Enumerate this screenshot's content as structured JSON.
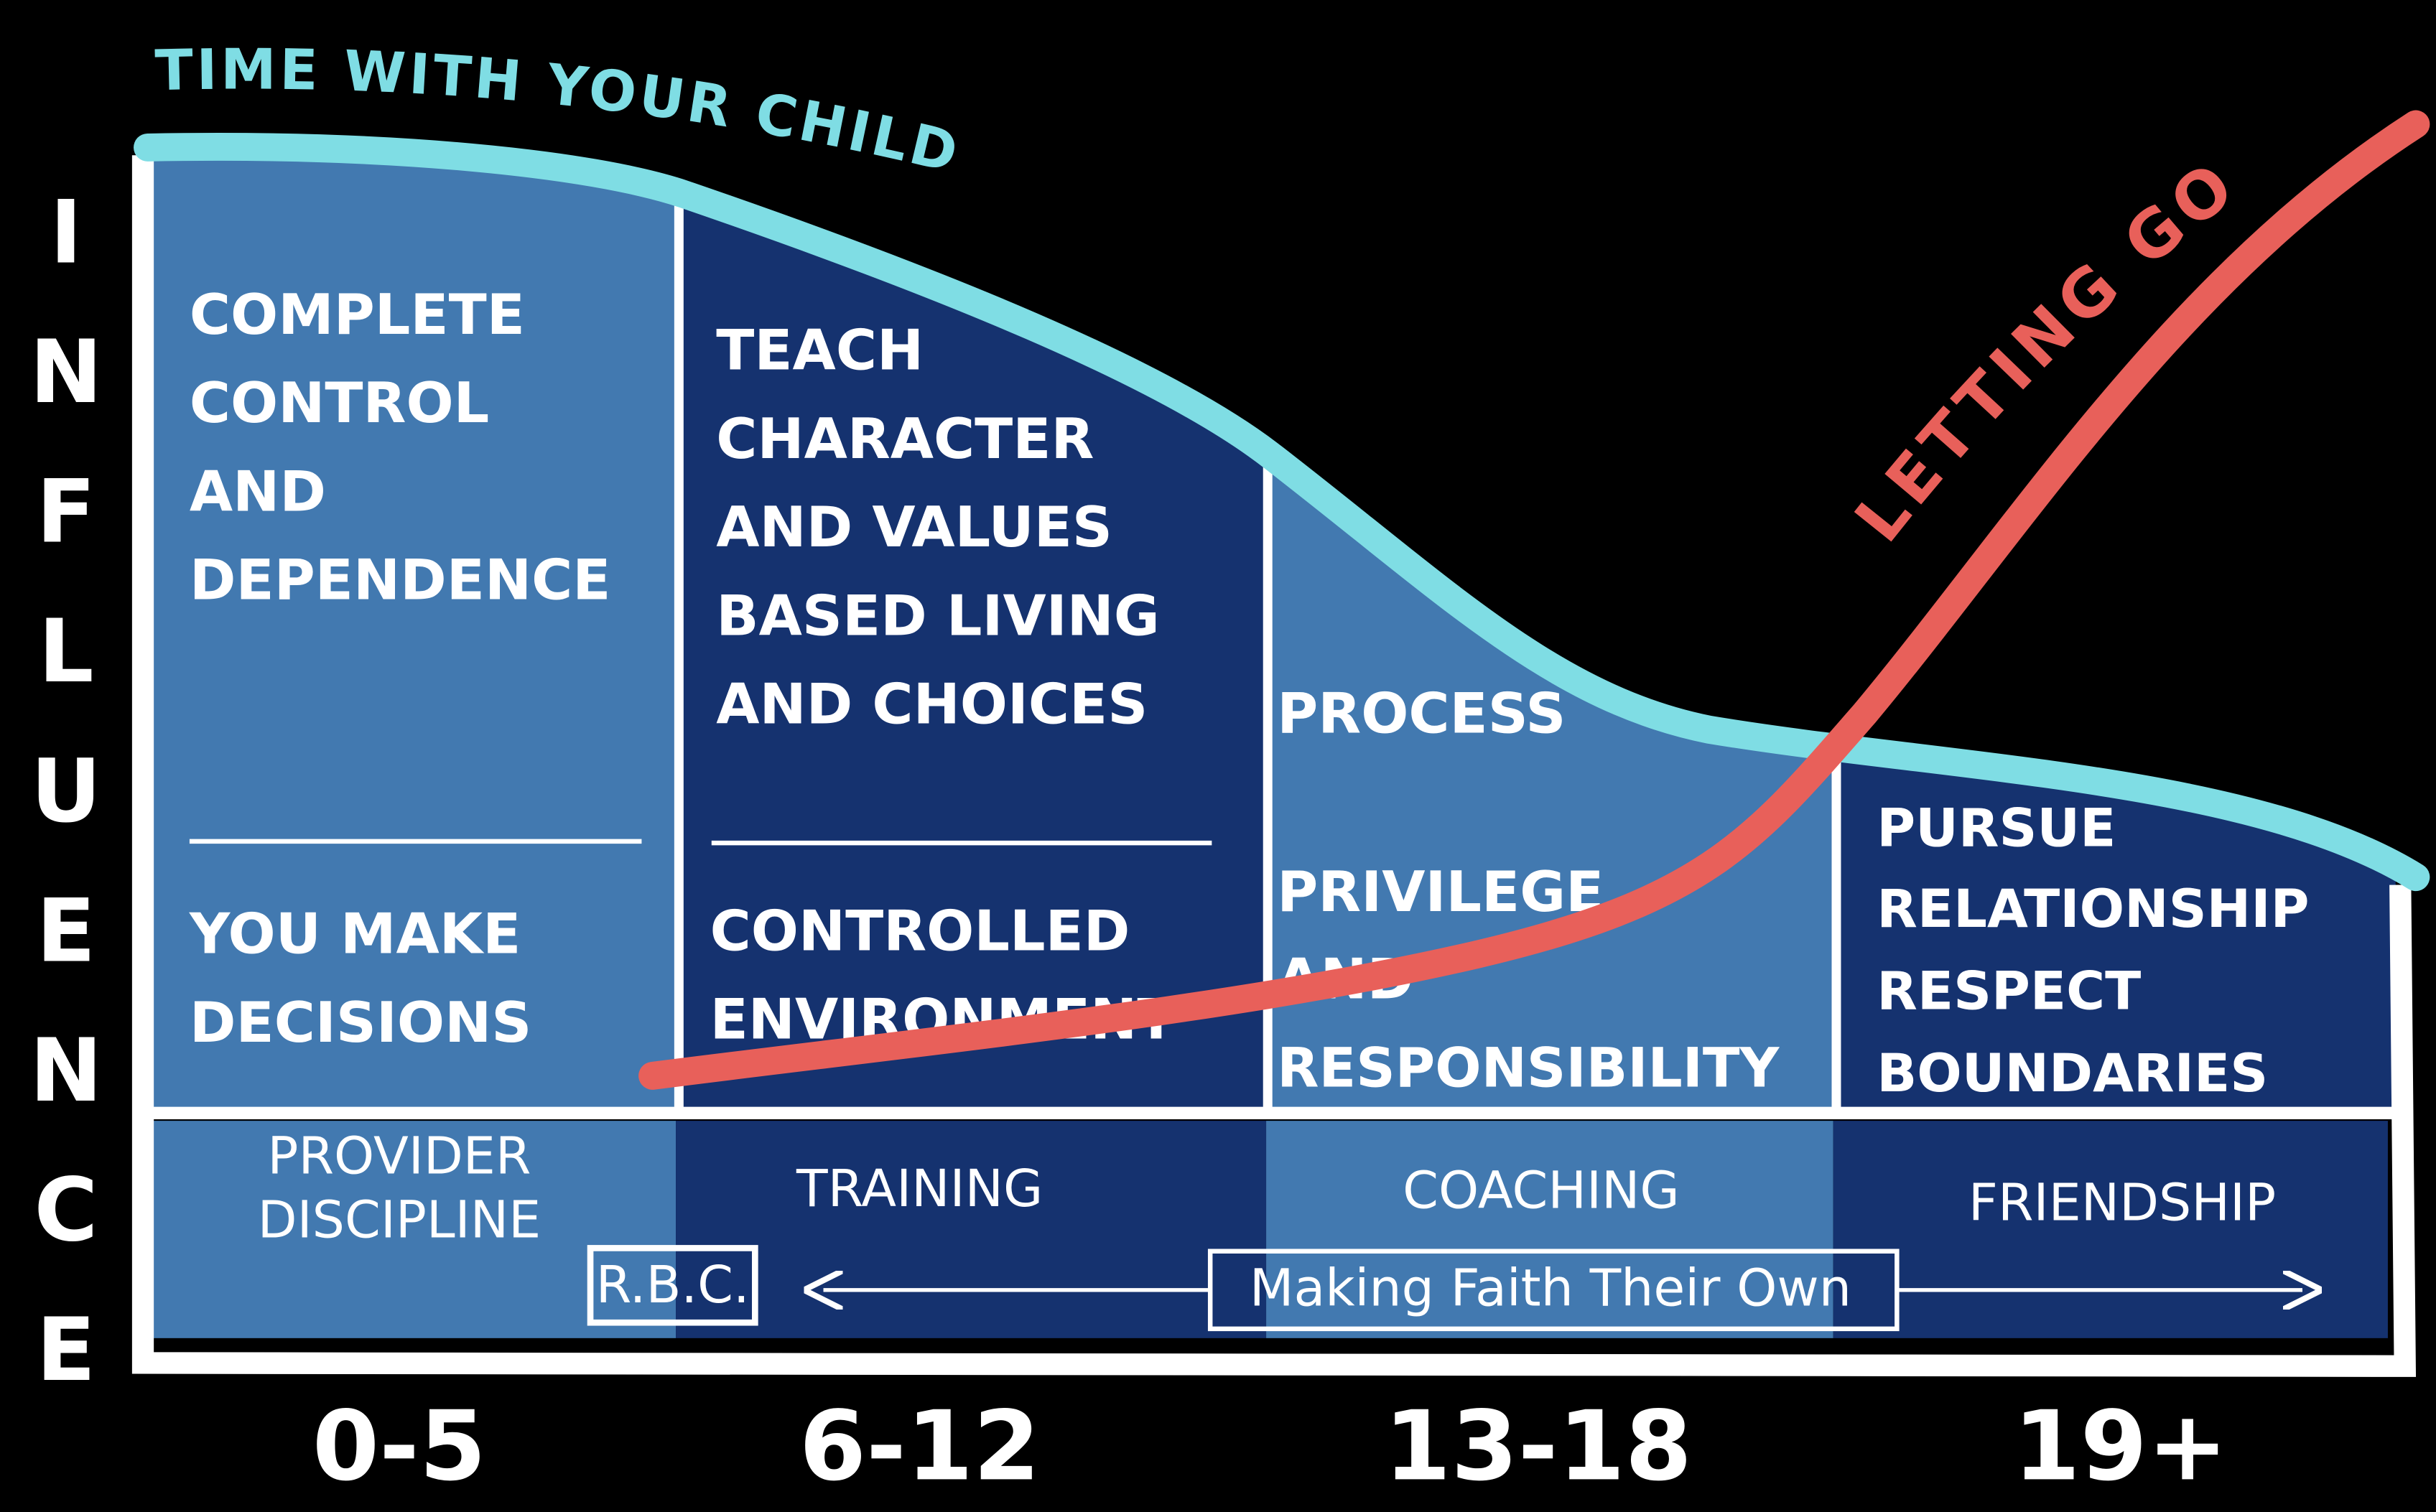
{
  "y_axis_label": "INFLUENCE",
  "curve_labels": {
    "time": "TIME WITH YOUR CHILD",
    "letting_go": "LETTING GO"
  },
  "stages": [
    {
      "age": "0-5",
      "top": [
        "COMPLETE",
        "CONTROL",
        "AND",
        "DEPENDENCE"
      ],
      "bottom": [
        "YOU MAKE",
        "DECISIONS"
      ],
      "role": [
        "PROVIDER",
        "DISCIPLINE"
      ]
    },
    {
      "age": "6-12",
      "top": [
        "TEACH",
        "CHARACTER",
        "AND VALUES",
        "BASED LIVING",
        "AND CHOICES"
      ],
      "bottom": [
        "CONTROLLED",
        "ENVIRONMENT"
      ],
      "role": [
        "TRAINING"
      ]
    },
    {
      "age": "13-18",
      "top": [
        "PROCESS"
      ],
      "bottom": [
        "PRIVILEGE",
        "AND",
        "RESPONSIBILITY"
      ],
      "role": [
        "COACHING"
      ]
    },
    {
      "age": "19+",
      "top": [
        "PURSUE",
        "RELATIONSHIP",
        "RESPECT",
        "BOUNDARIES"
      ],
      "role": [
        "FRIENDSHIP"
      ]
    }
  ],
  "badge": "R.B.C.",
  "faith_label": "Making Faith Their Own"
}
